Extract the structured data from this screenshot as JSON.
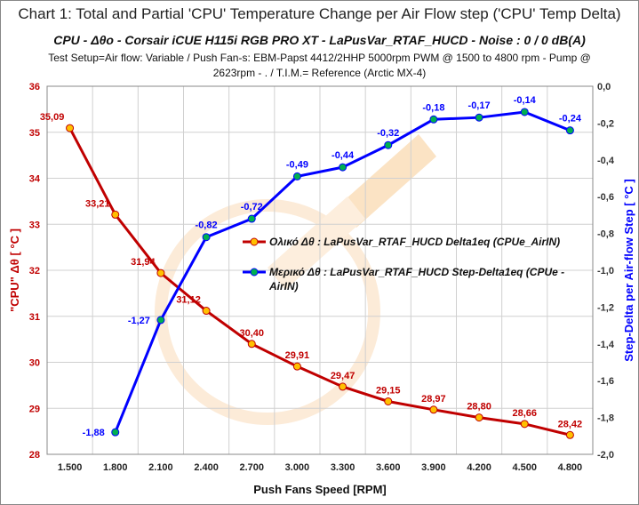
{
  "title": "Chart 1: Total and Partial 'CPU' Temperature Change per Air Flow step   ('CPU' Temp Delta)",
  "subtitle": "CPU -  Δθο  -  Corsair iCUE H115i RGB PRO XT  -  LaPusVar_RTAF_HUCD  -  Noise : 0 / 0  dB(A)",
  "setup_line1": "Test Setup=Air flow: Variable / Push Fan-s: EBM-Papst 4412/2HHP 5000rpm  PWM @ 1500  to 4800  rpm - Pump @",
  "setup_line2": "2623rpm  - . / T.I.M.= Reference (Arctic MX-4)",
  "chart_data": {
    "type": "line",
    "categories": [
      "1.500",
      "1.800",
      "2.100",
      "2.400",
      "2.700",
      "3.000",
      "3.300",
      "3.600",
      "3.900",
      "4.200",
      "4.500",
      "4.800"
    ],
    "xlabel": "Push Fans Speed [RPM]",
    "ylabel": "\"CPU\" Δθ  [ °C ]",
    "y2label": "Step-Delta per Air-flow Step  [ °C ]",
    "ylim": [
      28,
      36
    ],
    "y2lim": [
      -2.0,
      0.0
    ],
    "yticks": [
      "28",
      "29",
      "30",
      "31",
      "32",
      "33",
      "34",
      "35",
      "36"
    ],
    "y2ticks": [
      "-2,0",
      "-1,8",
      "-1,6",
      "-1,4",
      "-1,2",
      "-1,0",
      "-0,8",
      "-0,6",
      "-0,4",
      "-0,2",
      "0,0"
    ],
    "grid": true,
    "legend_position": "center-right",
    "series": [
      {
        "name": "Ολικό Δθ :  LaPusVar_RTAF_HUCD  Delta1eq (CPUe_AirIN)",
        "axis": "left",
        "color": "#c00000",
        "marker": "#ffc000",
        "values": [
          35.09,
          33.21,
          31.94,
          31.12,
          30.4,
          29.91,
          29.47,
          29.15,
          28.97,
          28.8,
          28.66,
          28.42
        ],
        "labels": [
          "35,09",
          "33,21",
          "31,94",
          "31,12",
          "30,40",
          "29,91",
          "29,47",
          "29,15",
          "28,97",
          "28,80",
          "28,66",
          "28,42"
        ]
      },
      {
        "name": "Μερικό Δθ :  LaPusVar_RTAF_HUCD  Step-Delta1eq (CPUe - AirIN)",
        "name_line1": "Μερικό Δθ :  LaPusVar_RTAF_HUCD  Step-Delta1eq (CPUe -",
        "name_line2": "AirIN)",
        "axis": "right",
        "color": "#0000ff",
        "marker": "#00b050",
        "values": [
          null,
          -1.88,
          -1.27,
          -0.82,
          -0.72,
          -0.49,
          -0.44,
          -0.32,
          -0.18,
          -0.17,
          -0.14,
          -0.24
        ],
        "labels": [
          null,
          "-1,88",
          "-1,27",
          "-0,82",
          "-0,72",
          "-0,49",
          "-0,44",
          "-0,32",
          "-0,18",
          "-0,17",
          "-0,14",
          "-0,24"
        ]
      }
    ]
  }
}
